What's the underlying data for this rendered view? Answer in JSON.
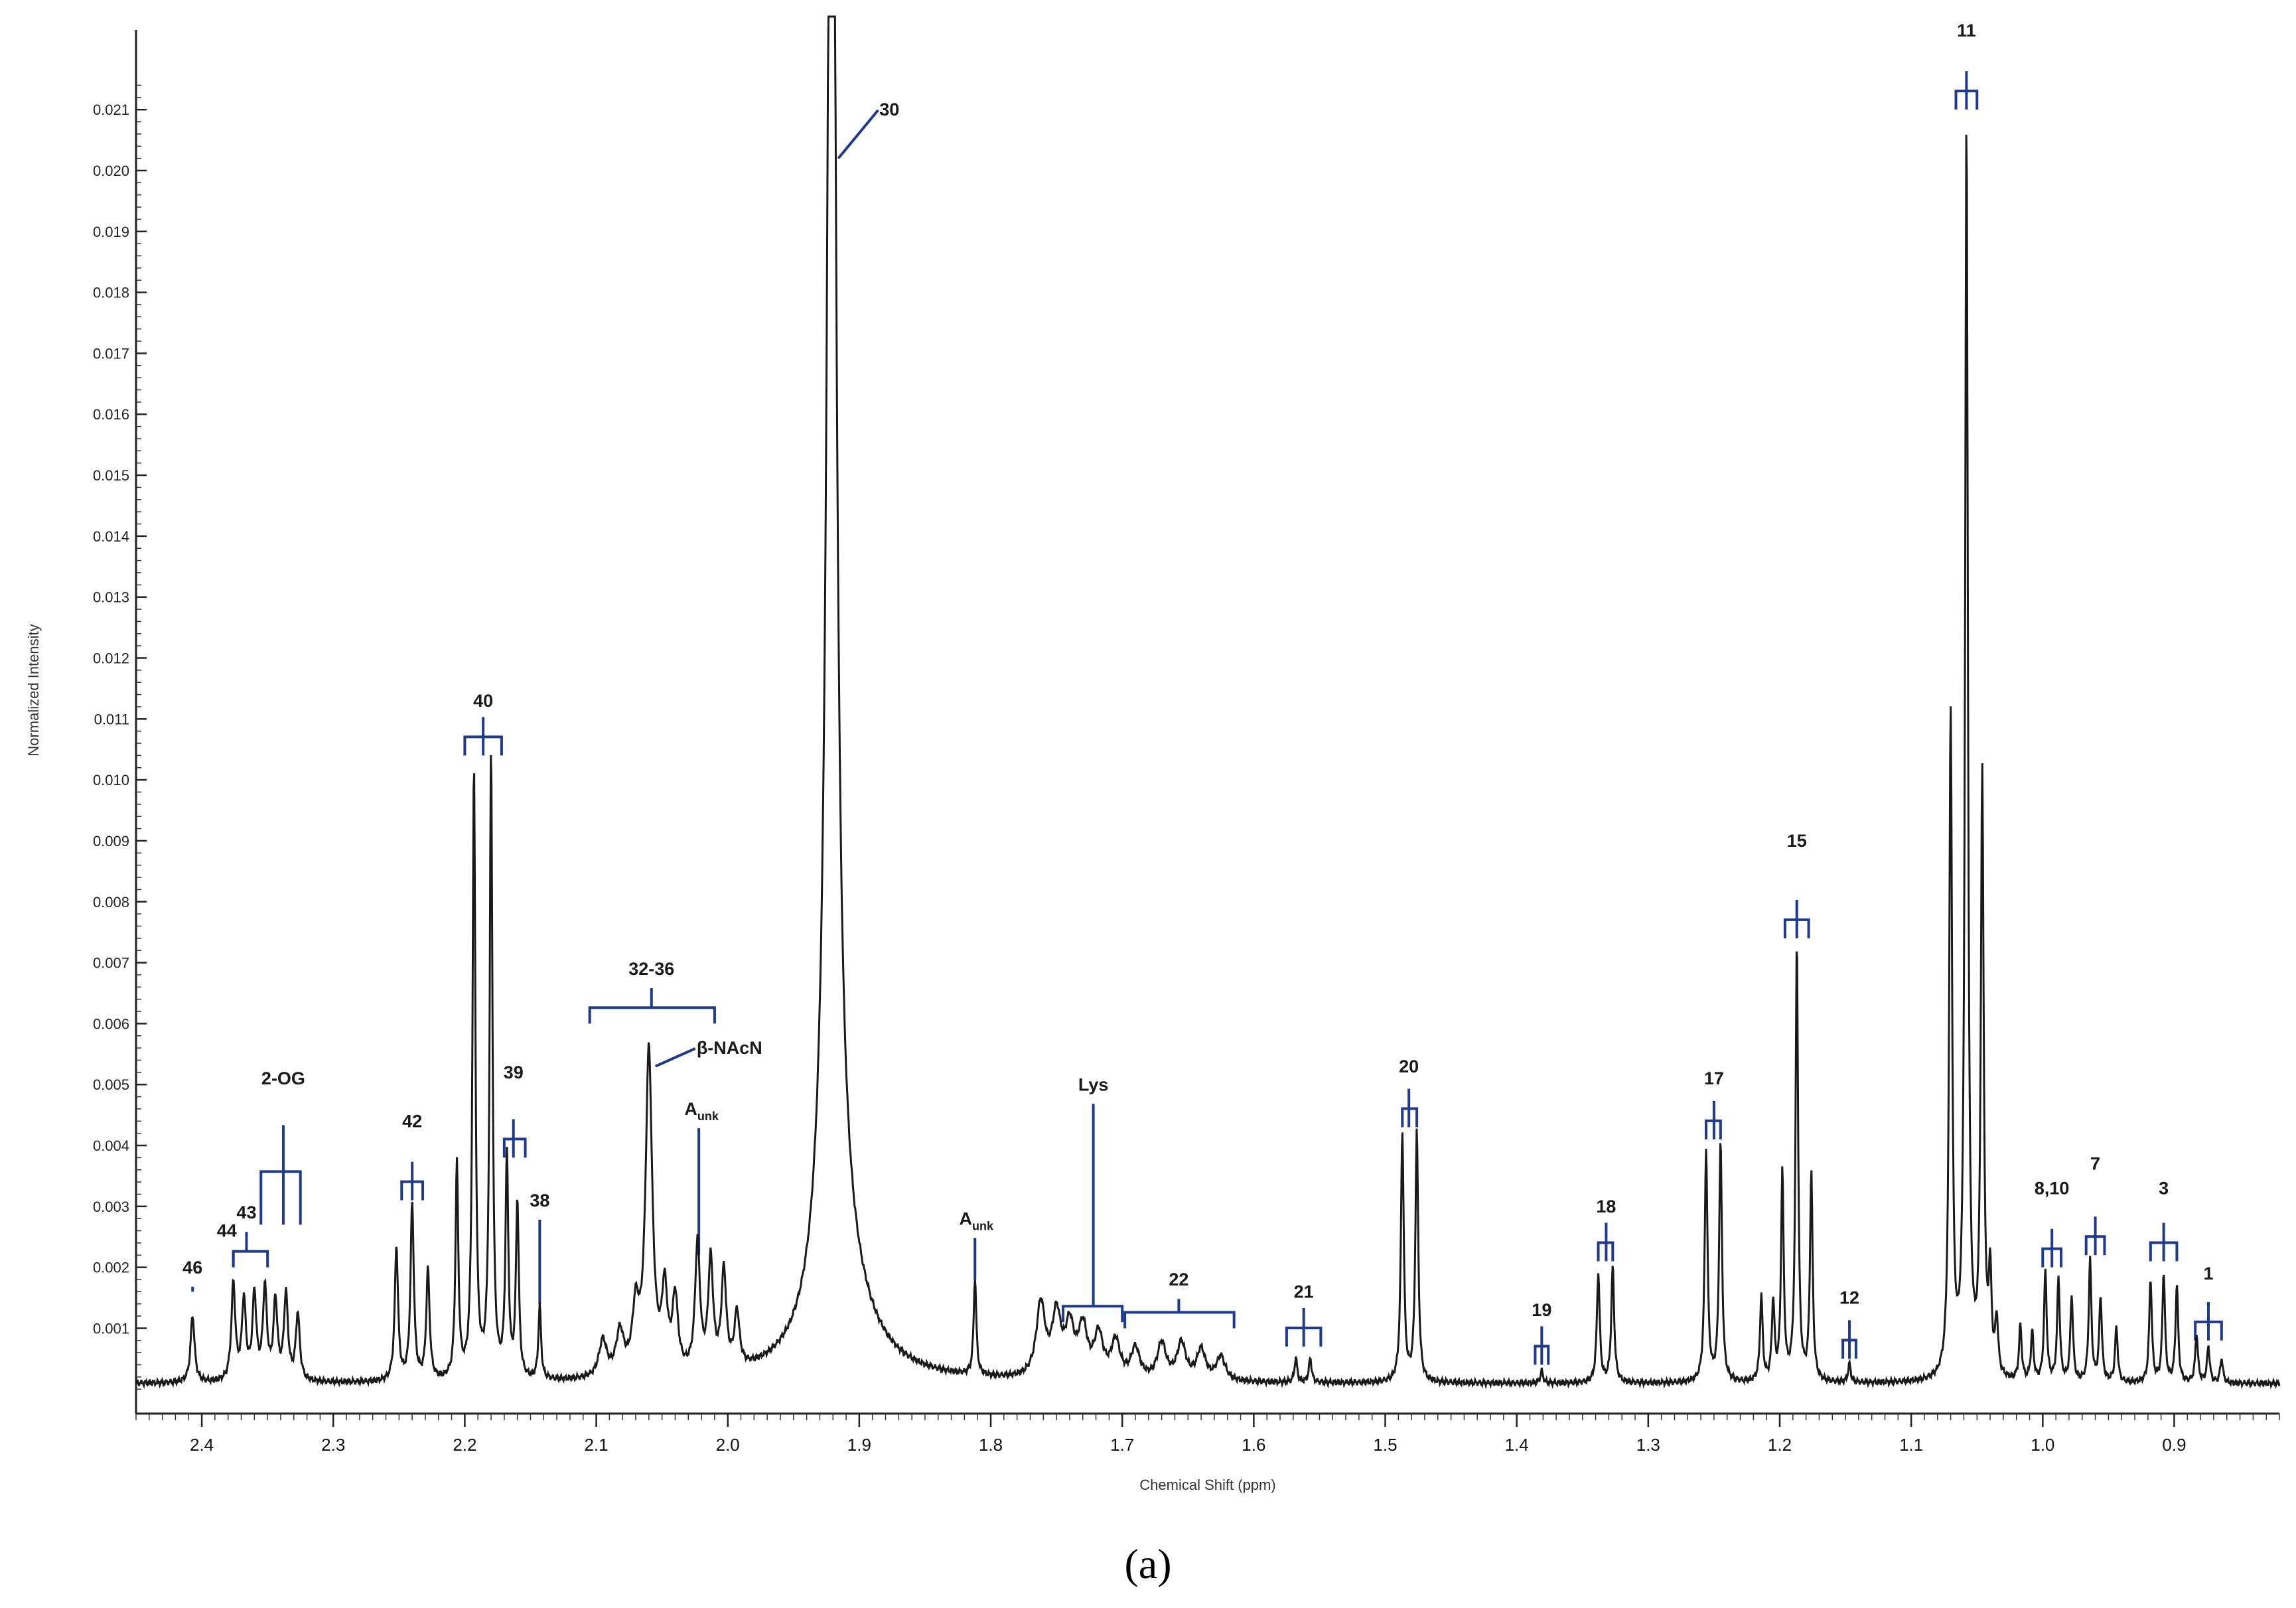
{
  "chart_data": {
    "type": "line",
    "title": "",
    "xlabel": "Chemical Shift (ppm)",
    "ylabel": "Normalized Intensity",
    "xlim": [
      2.45,
      0.82
    ],
    "ylim": [
      -0.0004,
      0.0222
    ],
    "x_reversed": true,
    "x_ticks": [
      "2.4",
      "2.3",
      "2.2",
      "2.1",
      "2.0",
      "1.9",
      "1.8",
      "1.7",
      "1.6",
      "1.5",
      "1.4",
      "1.3",
      "1.2",
      "1.1",
      "1.0",
      "0.9"
    ],
    "y_ticks": [
      "0.001",
      "0.002",
      "0.003",
      "0.004",
      "0.005",
      "0.006",
      "0.007",
      "0.008",
      "0.009",
      "0.010",
      "0.011",
      "0.012",
      "0.013",
      "0.014",
      "0.015",
      "0.016",
      "0.017",
      "0.018",
      "0.019",
      "0.020",
      "0.021"
    ],
    "grid": false,
    "line_color": "#1a1a1a",
    "annotation_color": "#1f3a8a",
    "caption": "(a)",
    "peaks": [
      {
        "x": 2.407,
        "y": 0.0011,
        "w": 0.0018
      },
      {
        "x": 2.376,
        "y": 0.0016,
        "w": 0.0018
      },
      {
        "x": 2.368,
        "y": 0.0013,
        "w": 0.0018
      },
      {
        "x": 2.36,
        "y": 0.0014,
        "w": 0.0018
      },
      {
        "x": 2.352,
        "y": 0.0015,
        "w": 0.0018
      },
      {
        "x": 2.344,
        "y": 0.0013,
        "w": 0.0018
      },
      {
        "x": 2.336,
        "y": 0.0014,
        "w": 0.0018
      },
      {
        "x": 2.327,
        "y": 0.0011,
        "w": 0.0018
      },
      {
        "x": 2.252,
        "y": 0.0022,
        "w": 0.0015
      },
      {
        "x": 2.24,
        "y": 0.0029,
        "w": 0.0015
      },
      {
        "x": 2.228,
        "y": 0.0018,
        "w": 0.0015
      },
      {
        "x": 2.206,
        "y": 0.0035,
        "w": 0.0013
      },
      {
        "x": 2.193,
        "y": 0.01,
        "w": 0.0013
      },
      {
        "x": 2.18,
        "y": 0.0102,
        "w": 0.0013
      },
      {
        "x": 2.168,
        "y": 0.0036,
        "w": 0.0013
      },
      {
        "x": 2.16,
        "y": 0.0029,
        "w": 0.0013
      },
      {
        "x": 2.143,
        "y": 0.0012,
        "w": 0.0012
      },
      {
        "x": 2.095,
        "y": 0.0006,
        "w": 0.0035
      },
      {
        "x": 2.082,
        "y": 0.0007,
        "w": 0.0035
      },
      {
        "x": 2.07,
        "y": 0.001,
        "w": 0.003
      },
      {
        "x": 2.06,
        "y": 0.0053,
        "w": 0.003
      },
      {
        "x": 2.048,
        "y": 0.0013,
        "w": 0.0025
      },
      {
        "x": 2.04,
        "y": 0.0012,
        "w": 0.0025
      },
      {
        "x": 2.023,
        "y": 0.0021,
        "w": 0.0022
      },
      {
        "x": 2.013,
        "y": 0.0018,
        "w": 0.0022
      },
      {
        "x": 2.003,
        "y": 0.0016,
        "w": 0.0022
      },
      {
        "x": 1.993,
        "y": 0.0009,
        "w": 0.0022
      },
      {
        "x": 1.921,
        "y": 0.0305,
        "w": 0.0035
      },
      {
        "x": 1.921,
        "y": 0.0022,
        "w": 0.012
      },
      {
        "x": 1.913,
        "y": 0.0012,
        "w": 0.026
      },
      {
        "x": 1.812,
        "y": 0.0016,
        "w": 0.0012
      },
      {
        "x": 1.762,
        "y": 0.0012,
        "w": 0.004
      },
      {
        "x": 1.75,
        "y": 0.001,
        "w": 0.004
      },
      {
        "x": 1.74,
        "y": 0.0008,
        "w": 0.004
      },
      {
        "x": 1.73,
        "y": 0.0008,
        "w": 0.004
      },
      {
        "x": 1.718,
        "y": 0.0007,
        "w": 0.004
      },
      {
        "x": 1.705,
        "y": 0.0006,
        "w": 0.004
      },
      {
        "x": 1.69,
        "y": 0.0005,
        "w": 0.004
      },
      {
        "x": 1.67,
        "y": 0.0006,
        "w": 0.004
      },
      {
        "x": 1.655,
        "y": 0.0006,
        "w": 0.004
      },
      {
        "x": 1.64,
        "y": 0.0005,
        "w": 0.004
      },
      {
        "x": 1.625,
        "y": 0.0004,
        "w": 0.004
      },
      {
        "x": 1.568,
        "y": 0.0004,
        "w": 0.0012
      },
      {
        "x": 1.557,
        "y": 0.0004,
        "w": 0.0012
      },
      {
        "x": 1.487,
        "y": 0.0041,
        "w": 0.0013
      },
      {
        "x": 1.476,
        "y": 0.0041,
        "w": 0.0013
      },
      {
        "x": 1.381,
        "y": 0.0002,
        "w": 0.0012
      },
      {
        "x": 1.338,
        "y": 0.0018,
        "w": 0.0013
      },
      {
        "x": 1.327,
        "y": 0.0019,
        "w": 0.0013
      },
      {
        "x": 1.256,
        "y": 0.0038,
        "w": 0.0013
      },
      {
        "x": 1.245,
        "y": 0.0039,
        "w": 0.0013
      },
      {
        "x": 1.214,
        "y": 0.0014,
        "w": 0.0012
      },
      {
        "x": 1.205,
        "y": 0.0013,
        "w": 0.0012
      },
      {
        "x": 1.198,
        "y": 0.0034,
        "w": 0.0012
      },
      {
        "x": 1.187,
        "y": 0.0072,
        "w": 0.0012
      },
      {
        "x": 1.176,
        "y": 0.0034,
        "w": 0.0012
      },
      {
        "x": 1.147,
        "y": 0.0003,
        "w": 0.0012
      },
      {
        "x": 1.07,
        "y": 0.0109,
        "w": 0.0013
      },
      {
        "x": 1.058,
        "y": 0.0205,
        "w": 0.0013
      },
      {
        "x": 1.046,
        "y": 0.0098,
        "w": 0.0013
      },
      {
        "x": 1.04,
        "y": 0.0016,
        "w": 0.0013
      },
      {
        "x": 1.035,
        "y": 0.0009,
        "w": 0.0013
      },
      {
        "x": 1.017,
        "y": 0.0009,
        "w": 0.0012
      },
      {
        "x": 1.008,
        "y": 0.0008,
        "w": 0.0012
      },
      {
        "x": 0.998,
        "y": 0.0018,
        "w": 0.0012
      },
      {
        "x": 0.988,
        "y": 0.0017,
        "w": 0.0012
      },
      {
        "x": 0.978,
        "y": 0.0014,
        "w": 0.0012
      },
      {
        "x": 0.964,
        "y": 0.002,
        "w": 0.0012
      },
      {
        "x": 0.956,
        "y": 0.0014,
        "w": 0.0012
      },
      {
        "x": 0.944,
        "y": 0.0009,
        "w": 0.0012
      },
      {
        "x": 0.918,
        "y": 0.0017,
        "w": 0.0012
      },
      {
        "x": 0.908,
        "y": 0.0018,
        "w": 0.0012
      },
      {
        "x": 0.898,
        "y": 0.0016,
        "w": 0.0012
      },
      {
        "x": 0.883,
        "y": 0.0008,
        "w": 0.0012
      },
      {
        "x": 0.874,
        "y": 0.0006,
        "w": 0.0012
      },
      {
        "x": 0.864,
        "y": 0.0004,
        "w": 0.0012
      }
    ],
    "annotations": [
      {
        "label": "46",
        "x": 2.407,
        "bracket": "line",
        "span": [
          2.407,
          2.407
        ],
        "y": 0.0016,
        "text_y": 0.0019
      },
      {
        "label": "44",
        "x": 2.381,
        "bracket": "line",
        "span": [
          2.376,
          2.376
        ],
        "y": 0.0021,
        "text_y": 0.0025
      },
      {
        "label": "43",
        "x": 2.366,
        "bracket": "square",
        "span": [
          2.376,
          2.35
        ],
        "y": 0.002,
        "text_y": 0.0028
      },
      {
        "label": "2-OG",
        "x": 2.338,
        "bracket": "triplet",
        "span": [
          2.355,
          2.325
        ],
        "y": 0.0027,
        "text_y": 0.005
      },
      {
        "label": "42",
        "x": 2.24,
        "bracket": "fork",
        "span": [
          2.248,
          2.232
        ],
        "y": 0.0031,
        "text_y": 0.0043
      },
      {
        "label": "40",
        "x": 2.186,
        "bracket": "fork",
        "span": [
          2.2,
          2.172
        ],
        "y": 0.0104,
        "text_y": 0.0112
      },
      {
        "label": "39",
        "x": 2.163,
        "bracket": "fork",
        "span": [
          2.17,
          2.154
        ],
        "y": 0.0038,
        "text_y": 0.0051
      },
      {
        "label": "38",
        "x": 2.143,
        "bracket": "line",
        "span": [
          2.143,
          2.143
        ],
        "y": 0.0014,
        "text_y": 0.003
      },
      {
        "label": "32-36",
        "x": 2.058,
        "bracket": "square",
        "span": [
          2.105,
          2.01
        ],
        "y": 0.006,
        "text_y": 0.0068
      },
      {
        "label": "β-NAcN",
        "x": 2.06,
        "bracket": "leader",
        "span": [
          2.06,
          2.06
        ],
        "y": 0.0053,
        "text_y": 0.0057
      },
      {
        "label": "A",
        "sub": "unk",
        "x": 2.02,
        "bracket": "line",
        "span": [
          2.022,
          2.022
        ],
        "y": 0.0022,
        "text_y": 0.0045
      },
      {
        "label": "30",
        "x": 1.921,
        "bracket": "leader",
        "span": [
          1.921,
          1.921
        ],
        "y": 0.0202,
        "text_y": 0.0211
      },
      {
        "label": "A",
        "sub": "unk",
        "x": 1.811,
        "bracket": "line",
        "span": [
          1.812,
          1.812
        ],
        "y": 0.0018,
        "text_y": 0.0027
      },
      {
        "label": "Lys",
        "x": 1.722,
        "bracket": "square",
        "span": [
          1.745,
          1.7
        ],
        "y": 0.0011,
        "text_y": 0.0049
      },
      {
        "label": "22",
        "x": 1.657,
        "bracket": "square",
        "span": [
          1.698,
          1.615
        ],
        "y": 0.001,
        "text_y": 0.0017
      },
      {
        "label": "21",
        "x": 1.562,
        "bracket": "fork",
        "span": [
          1.575,
          1.549
        ],
        "y": 0.0007,
        "text_y": 0.0015
      },
      {
        "label": "20",
        "x": 1.482,
        "bracket": "fork",
        "span": [
          1.487,
          1.476
        ],
        "y": 0.0043,
        "text_y": 0.0052
      },
      {
        "label": "19",
        "x": 1.381,
        "bracket": "fork",
        "span": [
          1.386,
          1.376
        ],
        "y": 0.0004,
        "text_y": 0.0012
      },
      {
        "label": "18",
        "x": 1.332,
        "bracket": "fork",
        "span": [
          1.338,
          1.327
        ],
        "y": 0.0021,
        "text_y": 0.0029
      },
      {
        "label": "17",
        "x": 1.25,
        "bracket": "fork",
        "span": [
          1.256,
          1.245
        ],
        "y": 0.0041,
        "text_y": 0.005
      },
      {
        "label": "15",
        "x": 1.187,
        "bracket": "fork",
        "span": [
          1.196,
          1.178
        ],
        "y": 0.0074,
        "text_y": 0.0089
      },
      {
        "label": "12",
        "x": 1.147,
        "bracket": "fork",
        "span": [
          1.152,
          1.142
        ],
        "y": 0.0005,
        "text_y": 0.0014
      },
      {
        "label": "11",
        "x": 1.058,
        "bracket": "fork",
        "span": [
          1.066,
          1.05
        ],
        "y": 0.021,
        "text_y": 0.0222
      },
      {
        "label": "8,10",
        "x": 0.993,
        "bracket": "fork",
        "span": [
          1.0,
          0.986
        ],
        "y": 0.002,
        "text_y": 0.0032
      },
      {
        "label": "7",
        "x": 0.96,
        "bracket": "fork",
        "span": [
          0.967,
          0.953
        ],
        "y": 0.0022,
        "text_y": 0.0036
      },
      {
        "label": "3",
        "x": 0.908,
        "bracket": "fork",
        "span": [
          0.918,
          0.898
        ],
        "y": 0.0021,
        "text_y": 0.0032
      },
      {
        "label": "1",
        "x": 0.874,
        "bracket": "fork",
        "span": [
          0.884,
          0.864
        ],
        "y": 0.0008,
        "text_y": 0.0018
      }
    ]
  }
}
